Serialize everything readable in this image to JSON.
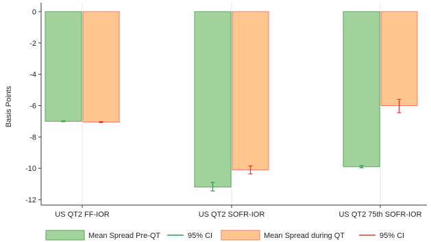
{
  "chart_data": {
    "type": "bar",
    "ylabel": "Basis Points",
    "ylim": [
      -12,
      0
    ],
    "yticks": [
      0,
      -2,
      -4,
      -6,
      -8,
      -10,
      -12
    ],
    "grid": "vertical",
    "legend_position": "bottom",
    "categories": [
      "US QT2 FF-IOR",
      "US QT2 SOFR-IOR",
      "US QT2 75th SOFR-IOR"
    ],
    "series": [
      {
        "name": "Mean Spread Pre-QT",
        "values": [
          -7.0,
          -11.2,
          -9.9
        ],
        "ci": [
          [
            -7.02,
            -6.98
          ],
          [
            -11.45,
            -10.9
          ],
          [
            -9.97,
            -9.83
          ]
        ],
        "fill": "#a3d39c",
        "stroke": "#5aa65a",
        "ci_name": "95% CI",
        "ci_color": "#2e9e3e"
      },
      {
        "name": "Mean Spread during QT",
        "values": [
          -7.05,
          -10.1,
          -6.0
        ],
        "ci": [
          [
            -7.08,
            -7.02
          ],
          [
            -10.35,
            -9.85
          ],
          [
            -6.45,
            -5.6
          ]
        ],
        "fill": "#ffc58f",
        "stroke": "#f07a6a",
        "ci_name": "95% CI",
        "ci_color": "#e8302a"
      }
    ]
  }
}
